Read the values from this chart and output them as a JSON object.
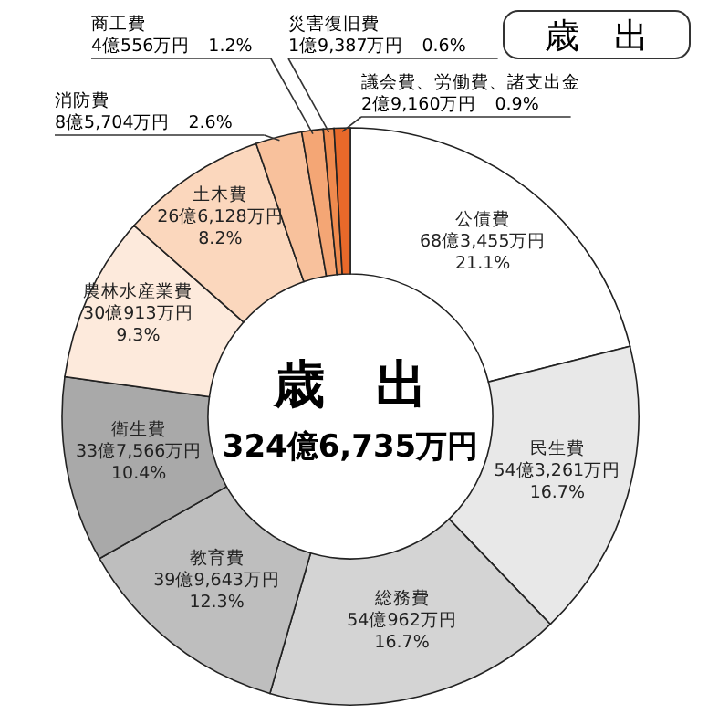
{
  "chart_data": {
    "type": "donut",
    "title": "歳　出",
    "annotations": [
      "歳　出",
      "324億6,735万円"
    ],
    "categories": [
      "公債費",
      "民生費",
      "総務費",
      "教育費",
      "衛生費",
      "農林水産業費",
      "土木費",
      "消防費",
      "商工費",
      "災害復旧費",
      "議会費、労働費、諸支出金"
    ],
    "values": [
      21.1,
      16.7,
      16.7,
      12.3,
      10.4,
      9.3,
      8.2,
      2.6,
      1.2,
      0.6,
      0.9
    ],
    "colors": [
      "#ffffff",
      "#e8e8e8",
      "#d4d4d4",
      "#bebebe",
      "#a9a9a9",
      "#fdeadc",
      "#fbd7bd",
      "#f8c19c",
      "#f4a675",
      "#ef8a4e",
      "#e8692a"
    ],
    "value_labels": [
      "68億3,455万円\n21.1%",
      "54億3,261万円\n16.7%",
      "54億962万円\n16.7%",
      "39億9,643万円\n12.3%",
      "33億7,566万円\n10.4%",
      "30億913万円\n9.3%",
      "26億6,128万円\n8.2%",
      "8億5,704万円\n2.6%",
      "4億556万円\n1.2%",
      "1億9,387万円\n0.6%",
      "2億9,160万円\n0.9%"
    ]
  }
}
